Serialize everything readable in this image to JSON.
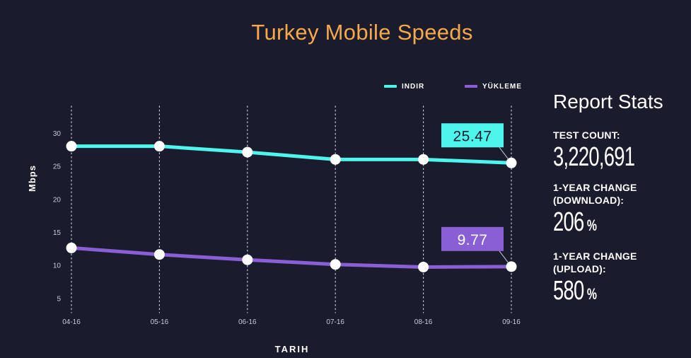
{
  "chart_data": {
    "type": "line",
    "title": "Turkey Mobile Speeds",
    "xlabel": "TARIH",
    "ylabel": "Mbps",
    "categories": [
      "04-16",
      "05-16",
      "06-16",
      "07-16",
      "08-16",
      "09-16"
    ],
    "ylim": [
      3,
      33
    ],
    "yticks": [
      5,
      10,
      15,
      20,
      25,
      30
    ],
    "grid": "vertical-dotted",
    "legend_position": "top-right",
    "series": [
      {
        "name": "INDIR",
        "color": "#4ef5ec",
        "values": [
          28.0,
          28.0,
          27.1,
          26.0,
          26.0,
          25.47
        ],
        "callout": "25.47"
      },
      {
        "name": "YÜKLEME",
        "color": "#8a5fd6",
        "values": [
          12.6,
          11.6,
          10.8,
          10.1,
          9.7,
          9.77
        ],
        "callout": "9.77"
      }
    ]
  },
  "stats": {
    "title": "Report Stats",
    "items": [
      {
        "label_lines": [
          "TEST COUNT:"
        ],
        "value": "3,220,691",
        "unit": ""
      },
      {
        "label_lines": [
          "1-YEAR CHANGE",
          "(DOWNLOAD):"
        ],
        "value": "206",
        "unit": "%"
      },
      {
        "label_lines": [
          "1-YEAR CHANGE",
          "(UPLOAD):"
        ],
        "value": "580",
        "unit": "%"
      }
    ]
  }
}
